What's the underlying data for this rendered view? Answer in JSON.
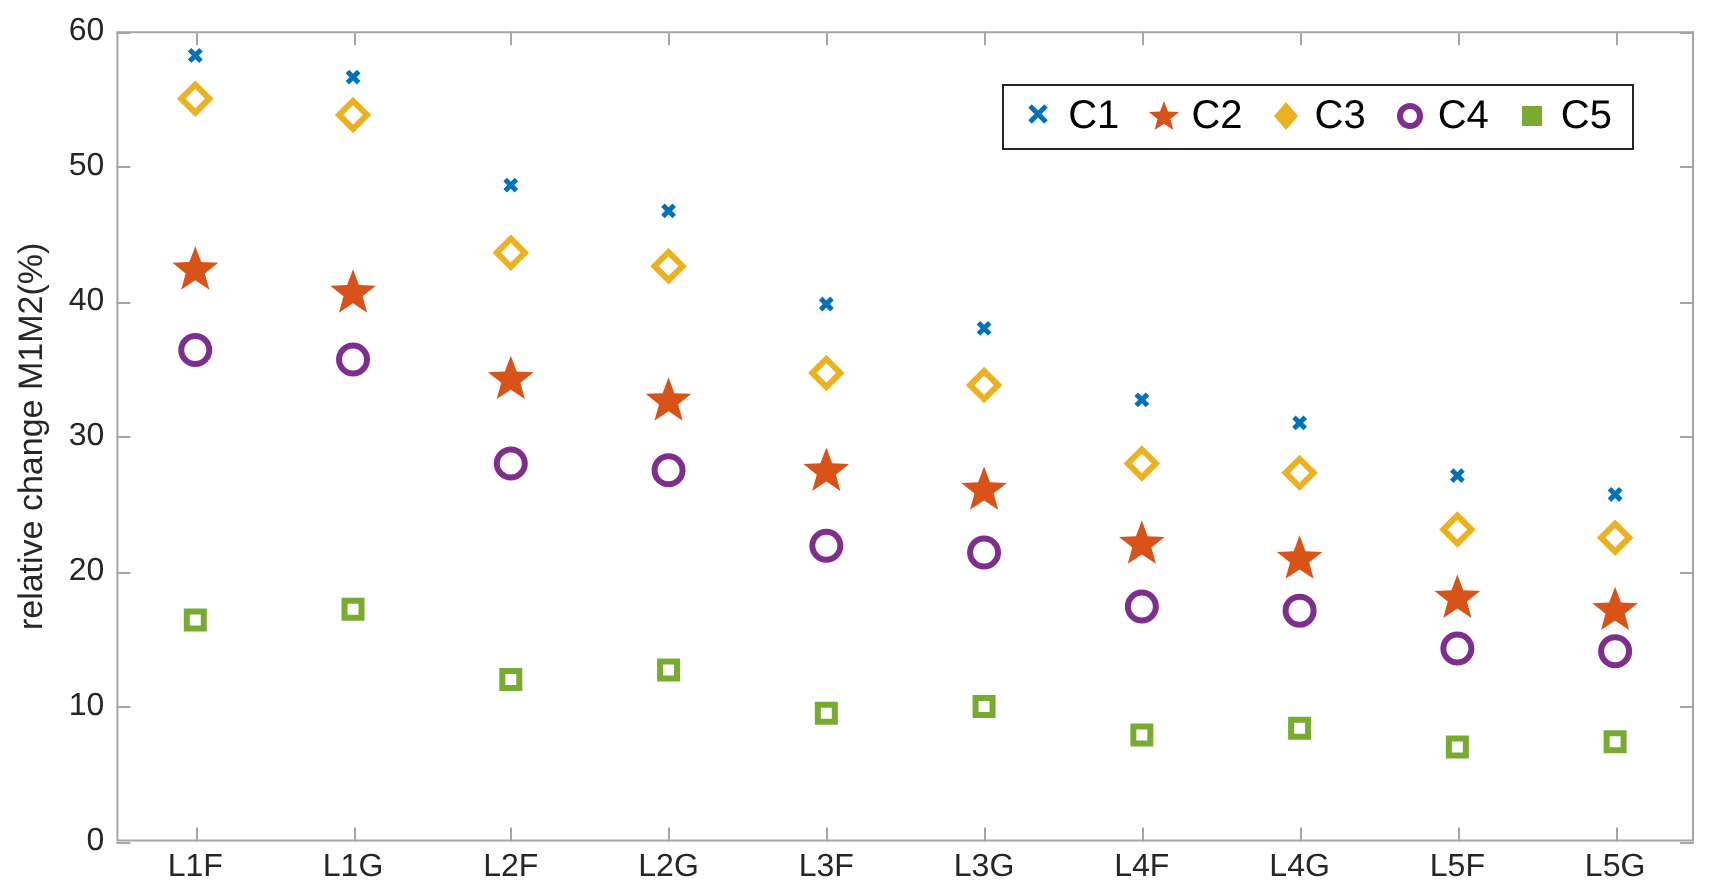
{
  "chart_data": {
    "type": "scatter",
    "ylabel": "relative change M1M2(%)",
    "categories": [
      "L1F",
      "L1G",
      "L2F",
      "L2G",
      "L3F",
      "L3G",
      "L4F",
      "L4G",
      "L5F",
      "L5G"
    ],
    "ylim": [
      0,
      60
    ],
    "yticks": [
      0,
      10,
      20,
      30,
      40,
      50,
      60
    ],
    "grid": false,
    "legend": "top right",
    "series": [
      {
        "name": "C1",
        "color": "#0072bd",
        "marker": "cross",
        "values": [
          58.2,
          56.6,
          48.6,
          46.7,
          39.8,
          38.0,
          32.7,
          31.0,
          27.1,
          25.7
        ]
      },
      {
        "name": "C2",
        "color": "#d95319",
        "marker": "star",
        "values": [
          42.3,
          40.6,
          34.2,
          32.6,
          27.4,
          26.0,
          22.0,
          20.9,
          18.0,
          17.1
        ]
      },
      {
        "name": "C3",
        "color": "#edb120",
        "marker": "diamond",
        "values": [
          55.0,
          53.8,
          43.6,
          42.6,
          34.7,
          33.8,
          28.0,
          27.3,
          23.1,
          22.5
        ]
      },
      {
        "name": "C4",
        "color": "#7e2f8e",
        "marker": "circle",
        "values": [
          36.4,
          35.7,
          28.0,
          27.5,
          21.9,
          21.4,
          17.4,
          17.1,
          14.3,
          14.1
        ]
      },
      {
        "name": "C5",
        "color": "#77ac30",
        "marker": "square",
        "values": [
          16.4,
          17.2,
          12.0,
          12.7,
          9.5,
          10.0,
          7.9,
          8.4,
          7.0,
          7.4
        ]
      }
    ]
  }
}
